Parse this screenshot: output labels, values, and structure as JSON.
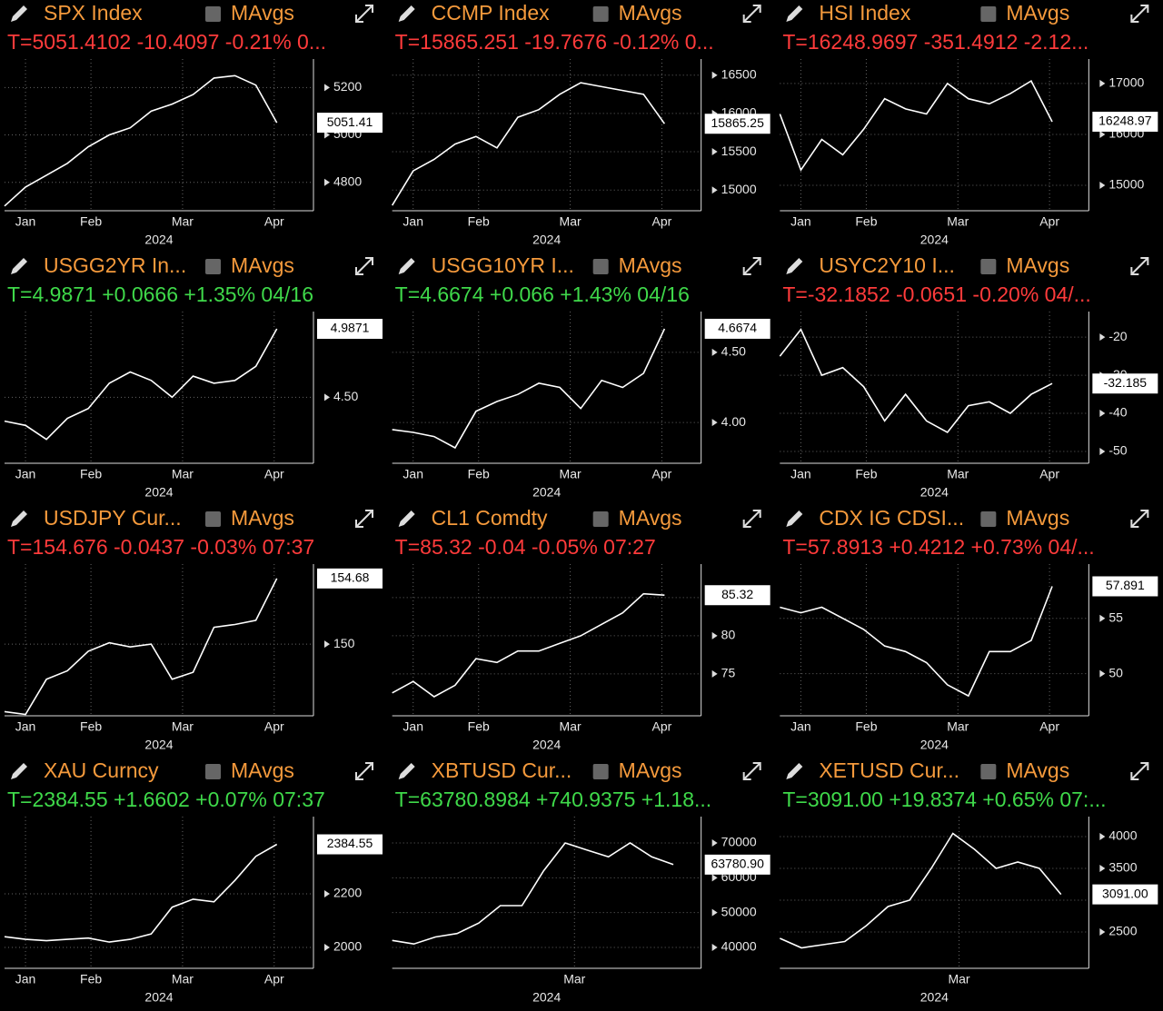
{
  "chart_data": [
    {
      "type": "line",
      "title": "SPX Index",
      "mavgs_label": "MAvgs",
      "quote": "T=5051.4102 -10.4097 -0.21% 0...",
      "quote_color": "#ff3b3b",
      "color": "#ffffff",
      "xlabel": "2024",
      "x": [
        0,
        8,
        16,
        24,
        32,
        40,
        48,
        56,
        64,
        72,
        80,
        88,
        96,
        104
      ],
      "values": [
        4700,
        4780,
        4830,
        4880,
        4950,
        5000,
        5030,
        5100,
        5130,
        5170,
        5240,
        5250,
        5210,
        5051.41
      ],
      "last_label": "5051.41",
      "xlim": [
        0,
        118
      ],
      "xticks": [
        {
          "value": 8,
          "label": "Jan"
        },
        {
          "value": 33,
          "label": "Feb"
        },
        {
          "value": 68,
          "label": "Mar"
        },
        {
          "value": 103,
          "label": "Apr"
        }
      ],
      "ylim": [
        4680,
        5320
      ],
      "yticks": [
        4800,
        5000,
        5200
      ],
      "grid": true
    },
    {
      "type": "line",
      "title": "CCMP Index",
      "mavgs_label": "MAvgs",
      "quote": "T=15865.251 -19.7676 -0.12% 0...",
      "quote_color": "#ff3b3b",
      "color": "#ffffff",
      "xlabel": "2024",
      "x": [
        0,
        8,
        16,
        24,
        32,
        40,
        48,
        56,
        64,
        72,
        80,
        88,
        96,
        104
      ],
      "values": [
        14800,
        15250,
        15400,
        15600,
        15700,
        15550,
        15950,
        16050,
        16250,
        16400,
        16350,
        16300,
        16250,
        15865.25
      ],
      "last_label": "15865.25",
      "xlim": [
        0,
        118
      ],
      "xticks": [
        {
          "value": 8,
          "label": "Jan"
        },
        {
          "value": 33,
          "label": "Feb"
        },
        {
          "value": 68,
          "label": "Mar"
        },
        {
          "value": 103,
          "label": "Apr"
        }
      ],
      "ylim": [
        14730,
        16710
      ],
      "yticks": [
        15000,
        15500,
        16000,
        16500
      ],
      "grid": true
    },
    {
      "type": "line",
      "title": "HSI Index",
      "mavgs_label": "MAvgs",
      "quote": "T=16248.9697 -351.4912 -2.12...",
      "quote_color": "#ff3b3b",
      "color": "#ffffff",
      "xlabel": "2024",
      "x": [
        0,
        8,
        16,
        24,
        32,
        40,
        48,
        56,
        64,
        72,
        80,
        88,
        96,
        104
      ],
      "values": [
        16400,
        15300,
        15900,
        15600,
        16100,
        16700,
        16500,
        16400,
        17000,
        16700,
        16600,
        16800,
        17050,
        16248.97
      ],
      "last_label": "16248.97",
      "xlim": [
        0,
        118
      ],
      "xticks": [
        {
          "value": 8,
          "label": "Jan"
        },
        {
          "value": 33,
          "label": "Feb"
        },
        {
          "value": 68,
          "label": "Mar"
        },
        {
          "value": 103,
          "label": "Apr"
        }
      ],
      "ylim": [
        14500,
        17480
      ],
      "yticks": [
        15000,
        16000,
        17000
      ],
      "grid": true
    },
    {
      "type": "line",
      "title": "USGG2YR In...",
      "mavgs_label": "MAvgs",
      "quote": "T=4.9871 +0.0666 +1.35% 04/16",
      "quote_color": "#3fd94a",
      "color": "#ffffff",
      "xlabel": "2024",
      "x": [
        0,
        8,
        16,
        24,
        32,
        40,
        48,
        56,
        64,
        72,
        80,
        88,
        96,
        104
      ],
      "values": [
        4.33,
        4.3,
        4.2,
        4.35,
        4.42,
        4.6,
        4.68,
        4.62,
        4.5,
        4.65,
        4.6,
        4.62,
        4.72,
        4.9871
      ],
      "last_label": "4.9871",
      "xlim": [
        0,
        118
      ],
      "xticks": [
        {
          "value": 8,
          "label": "Jan"
        },
        {
          "value": 33,
          "label": "Feb"
        },
        {
          "value": 68,
          "label": "Mar"
        },
        {
          "value": 103,
          "label": "Apr"
        }
      ],
      "ylim": [
        4.03,
        5.11
      ],
      "yticks": [
        {
          "value": 4.5,
          "label": "4.50"
        }
      ],
      "grid": true
    },
    {
      "type": "line",
      "title": "USGG10YR I...",
      "mavgs_label": "MAvgs",
      "quote": "T=4.6674 +0.066 +1.43% 04/16",
      "quote_color": "#3fd94a",
      "color": "#ffffff",
      "xlabel": "2024",
      "x": [
        0,
        8,
        16,
        24,
        32,
        40,
        48,
        56,
        64,
        72,
        80,
        88,
        96,
        104
      ],
      "values": [
        3.95,
        3.93,
        3.9,
        3.82,
        4.08,
        4.15,
        4.2,
        4.28,
        4.25,
        4.1,
        4.3,
        4.25,
        4.35,
        4.6674
      ],
      "last_label": "4.6674",
      "xlim": [
        0,
        118
      ],
      "xticks": [
        {
          "value": 8,
          "label": "Jan"
        },
        {
          "value": 33,
          "label": "Feb"
        },
        {
          "value": 68,
          "label": "Mar"
        },
        {
          "value": 103,
          "label": "Apr"
        }
      ],
      "ylim": [
        3.71,
        4.79
      ],
      "yticks": [
        {
          "value": 4,
          "label": "4.00"
        },
        {
          "value": 4.5,
          "label": "4.50"
        }
      ],
      "grid": true
    },
    {
      "type": "line",
      "title": "USYC2Y10 I...",
      "mavgs_label": "MAvgs",
      "quote": "T=-32.1852 -0.0651 -0.20% 04/...",
      "quote_color": "#ff3b3b",
      "color": "#ffffff",
      "xlabel": "2024",
      "x": [
        0,
        8,
        16,
        24,
        32,
        40,
        48,
        56,
        64,
        72,
        80,
        88,
        96,
        104
      ],
      "values": [
        -25,
        -18,
        -30,
        -28,
        -33,
        -42,
        -35,
        -42,
        -45,
        -38,
        -37,
        -40,
        -35,
        -32.1852
      ],
      "last_label": "-32.185",
      "xlim": [
        0,
        118
      ],
      "xticks": [
        {
          "value": 8,
          "label": "Jan"
        },
        {
          "value": 33,
          "label": "Feb"
        },
        {
          "value": 68,
          "label": "Mar"
        },
        {
          "value": 103,
          "label": "Apr"
        }
      ],
      "ylim": [
        -53.1,
        -13.3
      ],
      "yticks": [
        -50,
        -40,
        -30,
        -20
      ],
      "grid": true
    },
    {
      "type": "line",
      "title": "USDJPY Cur...",
      "mavgs_label": "MAvgs",
      "quote": "T=154.676 -0.0437 -0.03% 07:37",
      "quote_color": "#ff3b3b",
      "color": "#ffffff",
      "xlabel": "2024",
      "x": [
        0,
        8,
        16,
        24,
        32,
        40,
        48,
        56,
        64,
        72,
        80,
        88,
        96,
        104
      ],
      "values": [
        145.2,
        145.0,
        147.5,
        148.1,
        149.5,
        150.1,
        149.8,
        150.0,
        147.5,
        148.0,
        151.2,
        151.4,
        151.7,
        154.676
      ],
      "last_label": "154.68",
      "xlim": [
        0,
        118
      ],
      "xticks": [
        {
          "value": 8,
          "label": "Jan"
        },
        {
          "value": 33,
          "label": "Feb"
        },
        {
          "value": 68,
          "label": "Mar"
        },
        {
          "value": 103,
          "label": "Apr"
        }
      ],
      "ylim": [
        144.9,
        155.7
      ],
      "yticks": [
        150
      ],
      "grid": true
    },
    {
      "type": "line",
      "title": "CL1 Comdty",
      "mavgs_label": "MAvgs",
      "quote": "T=85.32 -0.04 -0.05% 07:27",
      "quote_color": "#ff3b3b",
      "color": "#ffffff",
      "xlabel": "2024",
      "x": [
        0,
        8,
        16,
        24,
        32,
        40,
        48,
        56,
        64,
        72,
        80,
        88,
        96,
        104
      ],
      "values": [
        72.5,
        74,
        72,
        73.5,
        77,
        76.5,
        78,
        78,
        79,
        80,
        81.5,
        83,
        85.5,
        85.32
      ],
      "last_label": "85.32",
      "xlim": [
        0,
        118
      ],
      "xticks": [
        {
          "value": 8,
          "label": "Jan"
        },
        {
          "value": 33,
          "label": "Feb"
        },
        {
          "value": 68,
          "label": "Mar"
        },
        {
          "value": 103,
          "label": "Apr"
        }
      ],
      "ylim": [
        69.5,
        89.4
      ],
      "yticks": [
        75,
        80,
        85
      ],
      "grid": true
    },
    {
      "type": "line",
      "title": "CDX IG CDSI...",
      "mavgs_label": "MAvgs",
      "quote": "T=57.8913 +0.4212 +0.73% 04/...",
      "quote_color": "#ff3b3b",
      "color": "#ffffff",
      "xlabel": "2024",
      "x": [
        0,
        8,
        16,
        24,
        32,
        40,
        48,
        56,
        64,
        72,
        80,
        88,
        96,
        104
      ],
      "values": [
        56,
        55.5,
        56,
        55,
        54,
        52.5,
        52,
        51,
        49,
        48,
        52,
        52,
        53,
        57.8913
      ],
      "last_label": "57.891",
      "xlim": [
        0,
        118
      ],
      "xticks": [
        {
          "value": 8,
          "label": "Jan"
        },
        {
          "value": 33,
          "label": "Feb"
        },
        {
          "value": 68,
          "label": "Mar"
        },
        {
          "value": 103,
          "label": "Apr"
        }
      ],
      "ylim": [
        46.2,
        59.9
      ],
      "yticks": [
        50,
        55
      ],
      "grid": true
    },
    {
      "type": "line",
      "title": "XAU Curncy",
      "mavgs_label": "MAvgs",
      "quote": "T=2384.55 +1.6602 +0.07% 07:37",
      "quote_color": "#3fd94a",
      "color": "#ffffff",
      "xlabel": "2024",
      "x": [
        0,
        8,
        16,
        24,
        32,
        40,
        48,
        56,
        64,
        72,
        80,
        88,
        96,
        104
      ],
      "values": [
        2040,
        2030,
        2025,
        2030,
        2035,
        2020,
        2030,
        2050,
        2150,
        2180,
        2170,
        2250,
        2340,
        2384.55
      ],
      "last_label": "2384.55",
      "xlim": [
        0,
        118
      ],
      "xticks": [
        {
          "value": 8,
          "label": "Jan"
        },
        {
          "value": 33,
          "label": "Feb"
        },
        {
          "value": 68,
          "label": "Mar"
        },
        {
          "value": 103,
          "label": "Apr"
        }
      ],
      "ylim": [
        1922,
        2488
      ],
      "yticks": [
        2000,
        2200
      ],
      "grid": true
    },
    {
      "type": "line",
      "title": "XBTUSD Cur...",
      "mavgs_label": "MAvgs",
      "quote": "T=63780.8984 +740.9375 +1.18...",
      "quote_color": "#3fd94a",
      "color": "#ffffff",
      "xlabel": "2024",
      "x": [
        0,
        14,
        28,
        42,
        56,
        70,
        84,
        98,
        112,
        126,
        140,
        154,
        168,
        182
      ],
      "values": [
        42000,
        41000,
        43000,
        44000,
        47000,
        52000,
        52000,
        62000,
        70000,
        68000,
        66000,
        70000,
        66000,
        63780.9
      ],
      "last_label": "63780.90",
      "xlim": [
        0,
        200
      ],
      "xticks": [
        {
          "value": 118,
          "label": "Mar"
        }
      ],
      "ylim": [
        34000,
        77566
      ],
      "yticks": [
        40000,
        50000,
        60000,
        70000
      ],
      "grid": true
    },
    {
      "type": "line",
      "title": "XETUSD Cur...",
      "mavgs_label": "MAvgs",
      "quote": "T=3091.00 +19.8374 +0.65% 07:...",
      "quote_color": "#3fd94a",
      "color": "#ffffff",
      "xlabel": "2024",
      "x": [
        0,
        14,
        28,
        42,
        56,
        70,
        84,
        98,
        112,
        126,
        140,
        154,
        168,
        182
      ],
      "values": [
        2400,
        2250,
        2300,
        2350,
        2600,
        2900,
        3000,
        3500,
        4050,
        3800,
        3500,
        3600,
        3500,
        3091.0
      ],
      "last_label": "3091.00",
      "xlim": [
        0,
        200
      ],
      "xticks": [
        {
          "value": 116,
          "label": "Mar"
        }
      ],
      "ylim": [
        1929,
        4314
      ],
      "yticks": [
        2500,
        3000,
        3500,
        4000
      ],
      "grid": true
    }
  ]
}
